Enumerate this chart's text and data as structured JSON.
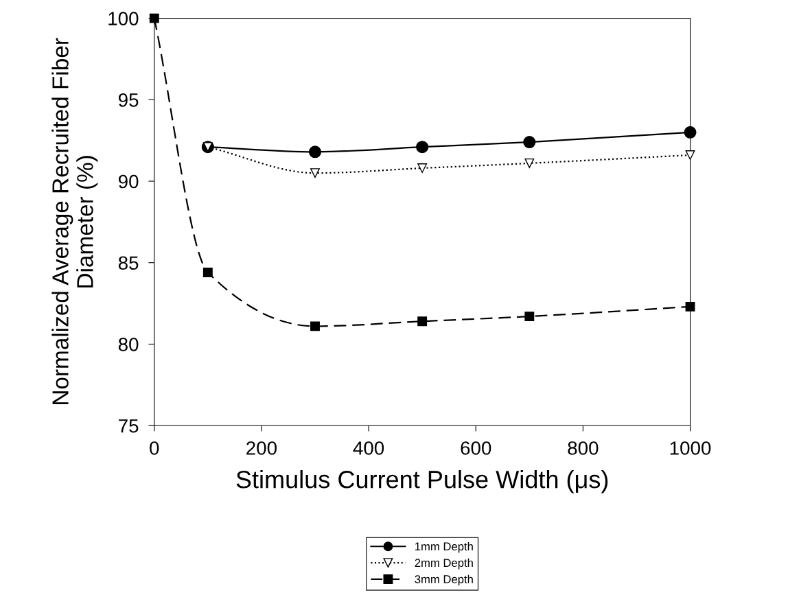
{
  "chart_data": {
    "type": "line",
    "xlabel": "Stimulus Current Pulse Width (μs)",
    "ylabel": "Normalized Average Recruited Fiber\nDiameter (%)",
    "xlim": [
      0,
      1000
    ],
    "xticks": [
      0,
      200,
      400,
      600,
      800,
      1000
    ],
    "ylim": [
      75,
      100
    ],
    "yticks": [
      75,
      80,
      85,
      90,
      95,
      100
    ],
    "x": [
      0,
      100,
      300,
      500,
      700,
      1000
    ],
    "grid": false,
    "legend": "bottom",
    "series": [
      {
        "name": "1mm Depth",
        "color": "#000000",
        "marker": "circle",
        "line_style": "solid",
        "values": [
          null,
          92.1,
          91.8,
          92.1,
          92.4,
          93.0
        ]
      },
      {
        "name": "2mm Depth",
        "color": "#000000",
        "marker": "triangle",
        "line_style": "dotted",
        "values": [
          null,
          92.1,
          90.5,
          90.8,
          91.1,
          91.6
        ]
      },
      {
        "name": "3mm Depth",
        "color": "#000000",
        "marker": "square",
        "line_style": "dashed",
        "values": [
          100,
          84.4,
          81.1,
          81.4,
          81.7,
          82.3
        ]
      }
    ]
  }
}
